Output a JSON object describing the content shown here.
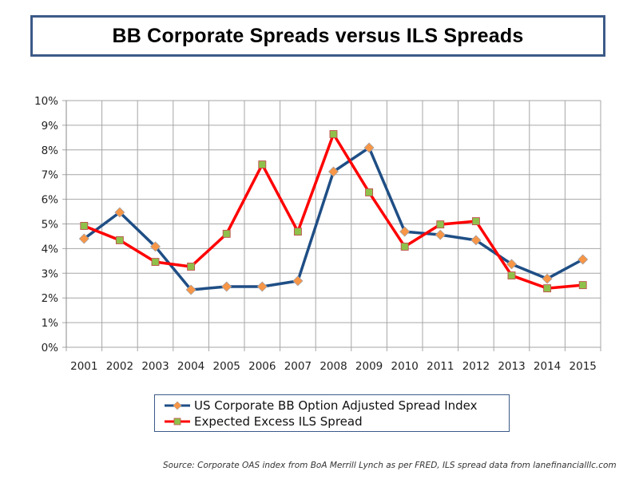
{
  "header": {
    "title": "BB Corporate Spreads versus ILS Spreads"
  },
  "legend": {
    "items": [
      {
        "label": "US Corporate BB Option Adjusted Spread Index",
        "line_color": "#1f4e85",
        "marker": "diamond",
        "marker_color": "#f79646"
      },
      {
        "label": "Expected Excess ILS Spread",
        "line_color": "#ff0000",
        "marker": "square",
        "marker_color": "#8fc14a"
      }
    ]
  },
  "footer": {
    "source": "Source:  Corporate OAS index from BoA Merrill Lynch as per FRED, ILS spread data  from lanefinancialllc.com"
  },
  "chart_data": {
    "type": "line",
    "title": "BB Corporate Spreads versus ILS Spreads",
    "xlabel": "",
    "ylabel": "",
    "categories": [
      "2001",
      "2002",
      "2003",
      "2004",
      "2005",
      "2006",
      "2007",
      "2008",
      "2009",
      "2010",
      "2011",
      "2012",
      "2013",
      "2014",
      "2015"
    ],
    "y_ticks": [
      "0%",
      "1%",
      "2%",
      "3%",
      "4%",
      "5%",
      "6%",
      "7%",
      "8%",
      "9%",
      "10%"
    ],
    "ylim": [
      0,
      10
    ],
    "y_unit": "%",
    "grid": true,
    "legend_position": "bottom",
    "series": [
      {
        "name": "US Corporate BB Option Adjusted Spread Index",
        "color": "#1f4e85",
        "marker": "diamond",
        "marker_color": "#f79646",
        "values": [
          4.4,
          5.47,
          4.08,
          2.33,
          2.46,
          2.46,
          2.69,
          7.12,
          8.09,
          4.69,
          4.56,
          4.34,
          3.37,
          2.78,
          3.56
        ]
      },
      {
        "name": "Expected Excess ILS Spread",
        "color": "#ff0000",
        "marker": "square",
        "marker_color": "#8fc14a",
        "values": [
          4.92,
          4.34,
          3.46,
          3.27,
          4.6,
          7.41,
          4.69,
          8.64,
          6.28,
          4.08,
          4.98,
          5.11,
          2.91,
          2.39,
          2.52
        ]
      }
    ]
  }
}
